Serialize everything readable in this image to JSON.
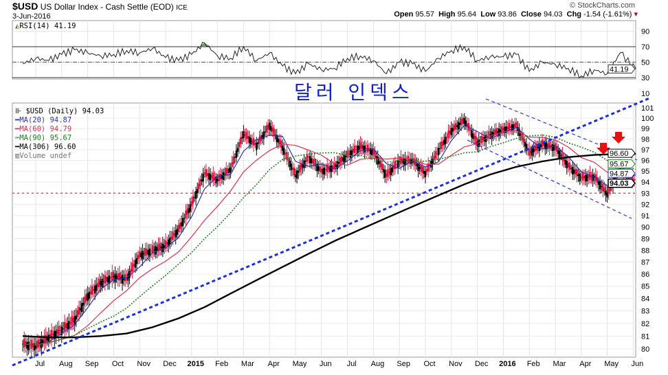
{
  "header": {
    "symbol": "$USD",
    "name": "US Dollar Index - Cash Settle (EOD)",
    "exchange": "ICE",
    "date": "3-Jun-2016",
    "credit": "© StockCharts.com",
    "open_label": "Open",
    "open": "95.57",
    "high_label": "High",
    "high": "95.64",
    "low_label": "Low",
    "low": "93.86",
    "close_label": "Close",
    "close": "94.03",
    "chg_label": "Chg",
    "chg": "-1.54 (-1.61%)"
  },
  "annotation": "달러 인덱스",
  "legend": {
    "price": "$USD (Daily) 94.03",
    "ma20": "MA(20) 94.87",
    "ma60": "MA(60) 94.79",
    "ma90": "MA(90) 95.67",
    "ma306": "MA(306) 96.60",
    "volume": "Volume undef",
    "rsi": "RSI(14) 41.19"
  },
  "colors": {
    "ma20": "#3030b0",
    "ma60": "#e03050",
    "ma90": "#208020",
    "ma306": "#000000",
    "trend": "#1a2ee0",
    "support": "#e03030",
    "rsi_fill": "#5a8a50"
  },
  "chart_data": [
    {
      "type": "line",
      "title": "RSI(14)",
      "ylim": [
        10,
        95
      ],
      "yticks": [
        90,
        70,
        50,
        30,
        10
      ],
      "reference_lines": [
        70,
        50,
        30
      ],
      "current": "41.19",
      "t": [
        -0.5,
        0,
        0.5,
        1,
        1.5,
        2,
        2.5,
        3,
        3.5,
        4,
        4.5,
        5,
        5.5,
        6,
        6.5,
        7,
        7.5,
        8,
        8.5,
        9,
        9.5,
        10,
        10.5,
        11,
        11.5,
        12,
        12.5,
        13,
        13.5,
        14,
        14.5,
        15,
        15.5,
        16,
        16.5,
        17,
        17.5,
        18,
        18.5,
        19,
        19.5,
        20,
        20.5,
        21,
        21.5,
        22,
        22.5,
        23.1
      ],
      "values": [
        48,
        55,
        52,
        60,
        66,
        62,
        58,
        60,
        65,
        62,
        68,
        56,
        52,
        60,
        75,
        58,
        55,
        70,
        52,
        62,
        45,
        35,
        48,
        40,
        42,
        55,
        58,
        52,
        35,
        50,
        48,
        38,
        55,
        65,
        70,
        52,
        57,
        57,
        60,
        38,
        50,
        47,
        42,
        32,
        40,
        35,
        62,
        41.19
      ]
    },
    {
      "type": "line",
      "title": "$USD (Daily)",
      "scale": "log",
      "ylim": [
        79.6,
        102
      ],
      "yticks": [
        101,
        100,
        99,
        98,
        97,
        96,
        95,
        94,
        93,
        92,
        91,
        90,
        89,
        88,
        87,
        86,
        85,
        84,
        83,
        82,
        81,
        80
      ],
      "xticks": [
        "Jul",
        "Aug",
        "Sep",
        "Oct",
        "Nov",
        "Dec",
        "2015",
        "Feb",
        "Mar",
        "Apr",
        "May",
        "Jun",
        "Jul",
        "Aug",
        "Sep",
        "Oct",
        "Nov",
        "Dec",
        "2016",
        "Feb",
        "Mar",
        "Apr",
        "May",
        "Jun"
      ],
      "t": [
        -0.5,
        0,
        0.5,
        1,
        1.5,
        2,
        2.5,
        3,
        3.5,
        4,
        4.5,
        5,
        5.5,
        6,
        6.5,
        7,
        7.5,
        8,
        8.5,
        9,
        9.5,
        10,
        10.5,
        11,
        11.5,
        12,
        12.5,
        13,
        13.5,
        14,
        14.5,
        15,
        15.5,
        16,
        16.5,
        17,
        17.5,
        18,
        18.5,
        19,
        19.5,
        20,
        20.5,
        21,
        21.5,
        22,
        22.5,
        23.1
      ],
      "close": [
        80.4,
        80.2,
        80.9,
        81.5,
        82.3,
        84.2,
        85.3,
        85.8,
        85.6,
        87.6,
        88.0,
        88.4,
        89.8,
        92.0,
        94.8,
        94.2,
        95.2,
        98.5,
        97.4,
        99.3,
        97.2,
        94.6,
        96.3,
        95.0,
        95.4,
        96.5,
        97.3,
        96.8,
        94.6,
        95.9,
        96.0,
        94.8,
        96.9,
        98.8,
        99.8,
        97.6,
        98.4,
        98.9,
        99.3,
        96.7,
        97.5,
        97.2,
        95.5,
        94.4,
        94.5,
        92.9,
        95.3,
        94.03
      ],
      "ma306_t": [
        -0.5,
        0.5,
        1.5,
        2.5,
        3.5,
        4.5,
        5.5,
        6.5,
        7.5,
        8.5,
        9.5,
        10.5,
        11.5,
        12.5,
        13.5,
        14.5,
        15.5,
        16.5,
        17.5,
        18.5,
        19.5,
        20.5,
        21.5,
        22.5,
        23.1
      ],
      "ma306": [
        81,
        80.9,
        80.9,
        81.0,
        81.2,
        81.7,
        82.4,
        83.3,
        84.4,
        85.5,
        86.6,
        87.7,
        88.8,
        89.8,
        90.8,
        91.8,
        92.8,
        93.8,
        94.7,
        95.4,
        95.9,
        96.3,
        96.5,
        96.6,
        96.6
      ],
      "support_level": 93,
      "value_tags": [
        {
          "label": "96.60",
          "series": "ma306"
        },
        {
          "label": "95.67",
          "series": "ma90"
        },
        {
          "label": "94.87",
          "series": "ma20"
        },
        {
          "label": "94.03",
          "series": "close"
        }
      ]
    }
  ]
}
